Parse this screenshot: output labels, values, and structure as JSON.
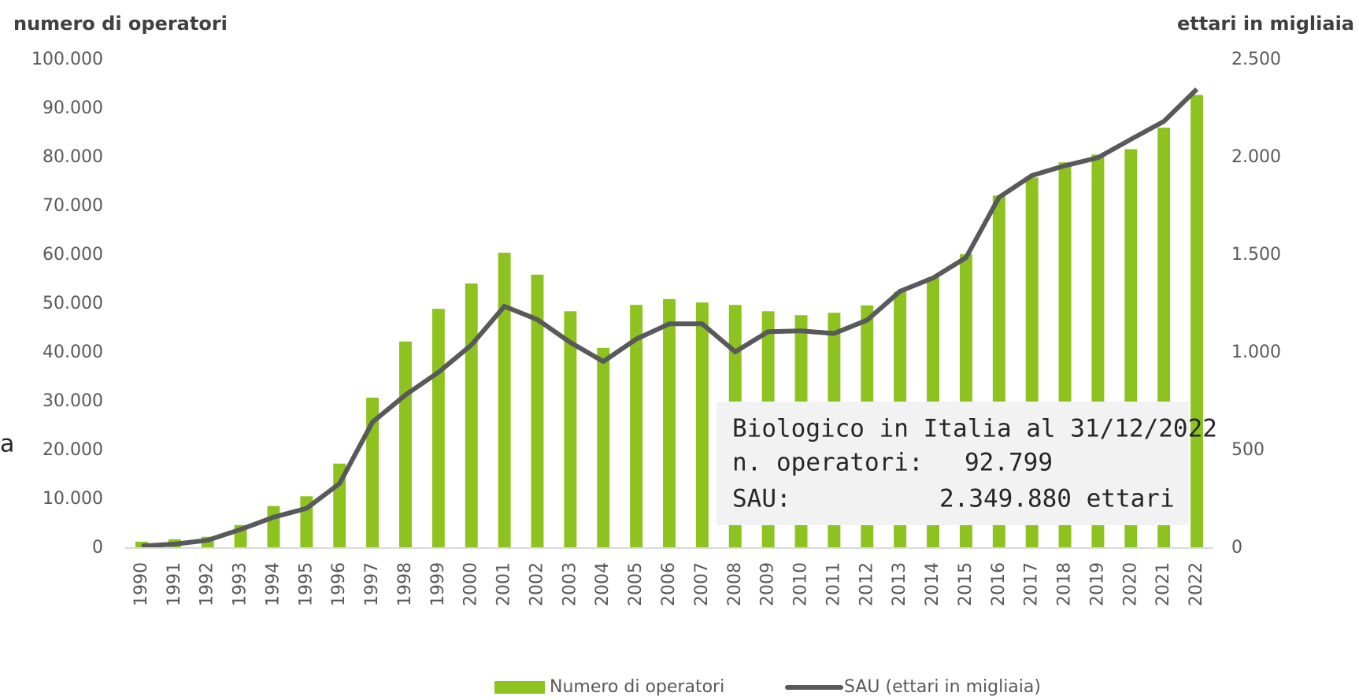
{
  "chart_data": {
    "type": "bar_line",
    "y_axis_title": "numero di operatori",
    "y2_axis_title": "ettari in migliaia",
    "fragment": "a",
    "categories": [
      "1990",
      "1991",
      "1992",
      "1993",
      "1994",
      "1995",
      "1996",
      "1997",
      "1998",
      "1999",
      "2000",
      "2001",
      "2002",
      "2003",
      "2004",
      "2005",
      "2006",
      "2007",
      "2008",
      "2009",
      "2010",
      "2011",
      "2012",
      "2013",
      "2014",
      "2015",
      "2016",
      "2017",
      "2018",
      "2019",
      "2020",
      "2021",
      "2022"
    ],
    "series": [
      {
        "name": "Numero di operatori",
        "color": "#8dc21f",
        "kind": "bar",
        "values": [
          1300,
          1800,
          2300,
          4700,
          8600,
          10600,
          17300,
          30800,
          42300,
          49000,
          54200,
          60500,
          56000,
          48500,
          41000,
          49800,
          51000,
          50300,
          49800,
          48500,
          47700,
          48200,
          49700,
          52500,
          55400,
          60200,
          72200,
          75900,
          79000,
          80600,
          81700,
          86100,
          92799
        ]
      },
      {
        "name": "SAU (ettari in migliaia)",
        "color": "#58595b",
        "kind": "line",
        "axis": "y2",
        "values": [
          10,
          20,
          40,
          95,
          158,
          203,
          330,
          645,
          784,
          900,
          1040,
          1238,
          1170,
          1053,
          955,
          1070,
          1148,
          1148,
          1005,
          1108,
          1112,
          1099,
          1167,
          1315,
          1383,
          1487,
          1796,
          1908,
          1958,
          1999,
          2093,
          2185,
          2350
        ]
      }
    ],
    "ylim": [
      0,
      100000
    ],
    "yticks": [
      0,
      {
        "value": 10000,
        "label": "10.000"
      },
      {
        "value": 20000,
        "label": "20.000"
      },
      {
        "value": 30000,
        "label": "30.000"
      },
      {
        "value": 40000,
        "label": "40.000"
      },
      {
        "value": 50000,
        "label": "50.000"
      },
      {
        "value": 60000,
        "label": "60.000"
      },
      {
        "value": 70000,
        "label": "70.000"
      },
      {
        "value": 80000,
        "label": "80.000"
      },
      {
        "value": 90000,
        "label": "90.000"
      },
      {
        "value": 100000,
        "label": "100.000"
      }
    ],
    "y2lim": [
      0,
      2500
    ],
    "y2ticks": [
      0,
      500,
      {
        "value": 1000,
        "label": "1.000"
      },
      {
        "value": 1500,
        "label": "1.500"
      },
      {
        "value": 2000,
        "label": "2.000"
      },
      {
        "value": 2500,
        "label": "2.500"
      }
    ],
    "annotation": {
      "title": "Biologico in Italia al 31/12/2022",
      "operators_label": "n. operatori:",
      "operators_value": "92.799",
      "sau_label": "SAU:",
      "sau_value": "2.349.880 ettari"
    },
    "legend": "bottom"
  }
}
